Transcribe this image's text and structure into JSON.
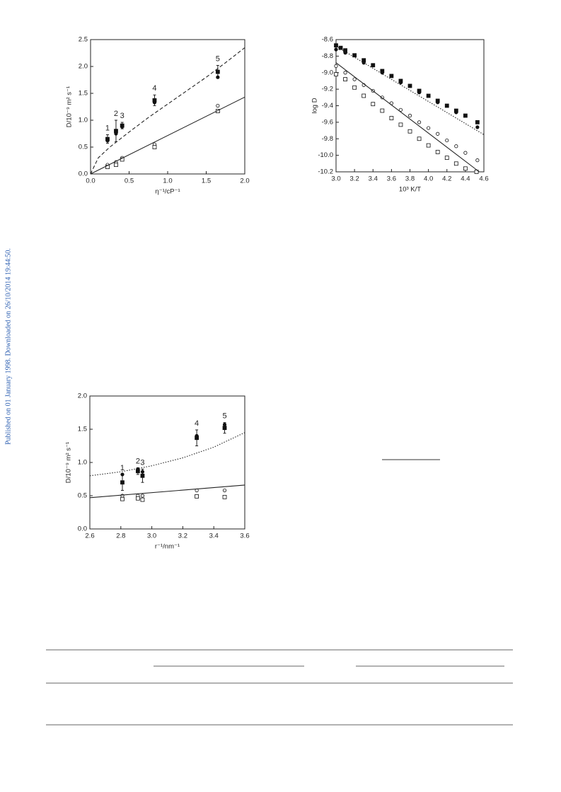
{
  "side_note": "Published on 01 January 1998. Downloaded on 26/10/2014 19:44:50.",
  "chart_data": [
    {
      "type": "scatter",
      "xlabel": "η⁻¹/cP⁻¹",
      "ylabel": "D/10⁻⁹ m² s⁻¹",
      "xlim": [
        0,
        2
      ],
      "ylim": [
        0,
        2.5
      ],
      "xticks": [
        {
          "value": 0,
          "label": "0.0"
        },
        0.5,
        {
          "value": 1,
          "label": "1.0"
        },
        1.5,
        {
          "value": 2,
          "label": "2.0"
        }
      ],
      "yticks": [
        {
          "value": 0,
          "label": "0.0"
        },
        0.5,
        {
          "value": 1,
          "label": "1.0"
        },
        1.5,
        {
          "value": 2,
          "label": "2.0"
        },
        2.5
      ],
      "series": [
        {
          "marker": "filled-square",
          "x": [
            0.22,
            0.33,
            0.41,
            0.83,
            1.65
          ],
          "values": [
            0.65,
            0.8,
            0.9,
            1.37,
            1.9
          ],
          "errors": [
            0.08,
            0.2,
            0.06,
            0.1,
            0.12
          ],
          "point_labels": [
            "1",
            "2",
            "3",
            "4",
            "5"
          ]
        },
        {
          "marker": "filled-circle",
          "x": [
            0.22,
            0.33,
            0.41,
            0.83,
            1.65
          ],
          "values": [
            0.62,
            0.75,
            0.88,
            1.33,
            1.8
          ]
        },
        {
          "marker": "open-circle",
          "x": [
            0.22,
            0.33,
            0.41,
            0.83,
            1.65
          ],
          "values": [
            0.17,
            0.22,
            0.3,
            0.55,
            1.27
          ]
        },
        {
          "marker": "open-square",
          "x": [
            0.22,
            0.33,
            0.41,
            0.83,
            1.65
          ],
          "values": [
            0.13,
            0.17,
            0.27,
            0.5,
            1.17
          ]
        },
        {
          "line": "dashed",
          "x": [
            0,
            0.1,
            0.25,
            0.5,
            0.75,
            1,
            1.25,
            1.5,
            1.75,
            2
          ],
          "values": [
            0,
            0.3,
            0.5,
            0.78,
            1.05,
            1.3,
            1.55,
            1.8,
            2.07,
            2.35
          ]
        },
        {
          "line": "solid",
          "x": [
            0,
            2
          ],
          "values": [
            0,
            1.43
          ]
        }
      ]
    },
    {
      "type": "scatter",
      "xlabel": "10³ K/T",
      "ylabel": "log D",
      "xlim": [
        3,
        4.6
      ],
      "ylim": [
        -10.2,
        -8.6
      ],
      "xticks": [
        {
          "value": 3,
          "label": "3.0"
        },
        3.2,
        3.4,
        3.6,
        3.8,
        {
          "value": 4,
          "label": "4.0"
        },
        4.2,
        4.4,
        4.6
      ],
      "yticks": [
        -8.6,
        -8.8,
        {
          "value": -9,
          "label": "-9.0"
        },
        -9.2,
        -9.4,
        -9.6,
        -9.8,
        {
          "value": -10,
          "label": "-10.0"
        },
        -10.2
      ],
      "series": [
        {
          "marker": "filled-square",
          "x": [
            3,
            3.05,
            3.1,
            3.2,
            3.3,
            3.4,
            3.5,
            3.6,
            3.7,
            3.8,
            3.9,
            4,
            4.1,
            4.2,
            4.3,
            4.4,
            4.53
          ],
          "values": [
            -8.67,
            -8.7,
            -8.73,
            -8.79,
            -8.85,
            -8.91,
            -8.98,
            -9.04,
            -9.1,
            -9.16,
            -9.22,
            -9.28,
            -9.34,
            -9.4,
            -9.46,
            -9.52,
            -9.6
          ]
        },
        {
          "marker": "filled-circle",
          "x": [
            3,
            3.1,
            3.3,
            3.5,
            3.7,
            3.9,
            4.1,
            4.3,
            4.53
          ],
          "values": [
            -8.72,
            -8.76,
            -8.88,
            -9,
            -9.12,
            -9.24,
            -9.36,
            -9.48,
            -9.66
          ]
        },
        {
          "marker": "open-circle",
          "x": [
            3,
            3.1,
            3.2,
            3.3,
            3.4,
            3.5,
            3.6,
            3.7,
            3.8,
            3.9,
            4,
            4.1,
            4.2,
            4.3,
            4.4,
            4.53
          ],
          "values": [
            -8.92,
            -9,
            -9.08,
            -9.15,
            -9.22,
            -9.3,
            -9.37,
            -9.45,
            -9.52,
            -9.6,
            -9.67,
            -9.74,
            -9.82,
            -9.89,
            -9.97,
            -10.06
          ]
        },
        {
          "marker": "open-square",
          "x": [
            3,
            3.1,
            3.2,
            3.3,
            3.4,
            3.5,
            3.6,
            3.7,
            3.8,
            3.9,
            4,
            4.1,
            4.2,
            4.3,
            4.4,
            4.52
          ],
          "values": [
            -9.02,
            -9.08,
            -9.18,
            -9.28,
            -9.38,
            -9.46,
            -9.55,
            -9.63,
            -9.71,
            -9.8,
            -9.88,
            -9.96,
            -10.03,
            -10.1,
            -10.16,
            -10.2
          ]
        },
        {
          "line": "dotted",
          "x": [
            3,
            4.6
          ],
          "values": [
            -8.68,
            -9.75
          ]
        },
        {
          "line": "solid",
          "x": [
            3,
            4.55
          ],
          "values": [
            -8.88,
            -10.2
          ]
        }
      ]
    },
    {
      "type": "scatter",
      "xlabel": "r⁻¹/nm⁻¹",
      "ylabel": "D/10⁻⁹ m² s⁻¹",
      "xlim": [
        2.6,
        3.6
      ],
      "ylim": [
        0,
        2
      ],
      "xticks": [
        2.6,
        2.8,
        {
          "value": 3,
          "label": "3.0"
        },
        3.2,
        3.4,
        3.6
      ],
      "yticks": [
        {
          "value": 0,
          "label": "0.0"
        },
        0.5,
        {
          "value": 1,
          "label": "1.0"
        },
        1.5,
        {
          "value": 2,
          "label": "2.0"
        }
      ],
      "series": [
        {
          "marker": "filled-square",
          "x": [
            2.81,
            2.91,
            2.94,
            3.29,
            3.47
          ],
          "values": [
            0.7,
            0.87,
            0.8,
            1.37,
            1.52
          ],
          "errors": [
            0.12,
            0.05,
            0.1,
            0.12,
            0.08
          ],
          "point_labels": [
            "1",
            "2",
            "3",
            "4",
            "5"
          ]
        },
        {
          "marker": "filled-circle",
          "x": [
            2.81,
            2.91,
            2.94,
            3.29,
            3.47
          ],
          "values": [
            0.82,
            0.9,
            0.86,
            1.4,
            1.57
          ]
        },
        {
          "marker": "open-circle",
          "x": [
            2.81,
            2.91,
            2.94,
            3.29,
            3.47
          ],
          "values": [
            0.5,
            0.5,
            0.5,
            0.58,
            0.58
          ]
        },
        {
          "marker": "open-square",
          "x": [
            2.81,
            2.91,
            2.94,
            3.29,
            3.47
          ],
          "values": [
            0.45,
            0.46,
            0.44,
            0.49,
            0.48
          ]
        },
        {
          "line": "dotted",
          "x": [
            2.6,
            2.8,
            3,
            3.2,
            3.4,
            3.6
          ],
          "values": [
            0.8,
            0.86,
            0.95,
            1.07,
            1.23,
            1.45
          ]
        },
        {
          "line": "solid",
          "x": [
            2.6,
            3.6
          ],
          "values": [
            0.47,
            0.66
          ]
        }
      ]
    }
  ]
}
